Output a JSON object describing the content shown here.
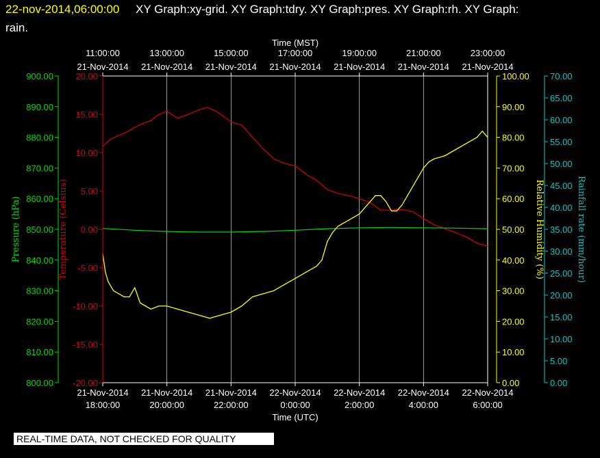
{
  "header": {
    "date": "22-nov-2014,06:00:00",
    "line1": "XY Graph:xy-grid.  XY Graph:tdry.  XY Graph:pres.  XY Graph:rh.  XY Graph:",
    "line2": "rain."
  },
  "quality_notice": "REAL-TIME DATA, NOT CHECKED FOR QUALITY",
  "colors": {
    "pressure": "#00dd00",
    "temperature": "#dd0000",
    "humidity": "#ffff00",
    "rain": "#00cccc",
    "grid": "#ffffff",
    "background": "#000000"
  },
  "chart_data": {
    "type": "line",
    "x_axis_top": {
      "label": "Time (MST)",
      "ticks": [
        {
          "time": "11:00:00",
          "date": "21-Nov-2014"
        },
        {
          "time": "13:00:00",
          "date": "21-Nov-2014"
        },
        {
          "time": "15:00:00",
          "date": "21-Nov-2014"
        },
        {
          "time": "17:00:00",
          "date": "21-Nov-2014"
        },
        {
          "time": "19:00:00",
          "date": "21-Nov-2014"
        },
        {
          "time": "21:00:00",
          "date": "21-Nov-2014"
        },
        {
          "time": "23:00:00",
          "date": "21-Nov-2014"
        }
      ]
    },
    "x_axis_bottom": {
      "label": "Time (UTC)",
      "range": [
        "2014-11-21 18:00",
        "2014-11-22 06:00"
      ],
      "ticks": [
        {
          "date": "21-Nov-2014",
          "time": "18:00:00"
        },
        {
          "date": "21-Nov-2014",
          "time": "20:00:00"
        },
        {
          "date": "21-Nov-2014",
          "time": "22:00:00"
        },
        {
          "date": "22-Nov-2014",
          "time": "0:00:00"
        },
        {
          "date": "22-Nov-2014",
          "time": "2:00:00"
        },
        {
          "date": "22-Nov-2014",
          "time": "4:00:00"
        },
        {
          "date": "22-Nov-2014",
          "time": "6:00:00"
        }
      ]
    },
    "axes": {
      "pressure": {
        "label": "Pressure (hPa)",
        "range": [
          800,
          900
        ],
        "ticks": [
          "800.00",
          "810.00",
          "820.00",
          "830.00",
          "840.00",
          "850.00",
          "860.00",
          "870.00",
          "880.00",
          "890.00",
          "900.00"
        ]
      },
      "temperature": {
        "label": "Temperature (Celsius)",
        "range": [
          -20,
          20
        ],
        "ticks": [
          "-20.00",
          "-15.00",
          "-10.00",
          "-5.00",
          "0.00",
          "5.00",
          "10.00",
          "15.00",
          "20.00"
        ]
      },
      "humidity": {
        "label": "Relative Humidity (%)",
        "range": [
          0,
          100
        ],
        "ticks": [
          "0.00",
          "10.00",
          "20.00",
          "30.00",
          "40.00",
          "50.00",
          "60.00",
          "70.00",
          "80.00",
          "90.00",
          "100.00"
        ]
      },
      "rain": {
        "label": "Rainfall rate (mm/hour)",
        "range": [
          0,
          70
        ],
        "ticks": [
          "0.00",
          "5.00",
          "10.00",
          "15.00",
          "20.00",
          "25.00",
          "30.00",
          "35.00",
          "40.00",
          "45.00",
          "50.00",
          "55.00",
          "60.00",
          "65.00",
          "70.00"
        ]
      }
    },
    "grid": true,
    "series": [
      {
        "key": "temperature",
        "x": [
          "2014-11-21 18:00",
          "2014-11-21 18:15",
          "2014-11-21 18:45",
          "2014-11-21 19:00",
          "2014-11-21 19:15",
          "2014-11-21 19:30",
          "2014-11-21 19:45",
          "2014-11-21 20:00",
          "2014-11-21 20:20",
          "2014-11-21 20:40",
          "2014-11-21 21:00",
          "2014-11-21 21:15",
          "2014-11-21 21:30",
          "2014-11-21 21:45",
          "2014-11-21 22:00",
          "2014-11-21 22:20",
          "2014-11-21 22:40",
          "2014-11-21 23:00",
          "2014-11-21 23:20",
          "2014-11-21 23:40",
          "2014-11-22 00:00",
          "2014-11-22 00:20",
          "2014-11-22 00:40",
          "2014-11-22 01:00",
          "2014-11-22 01:20",
          "2014-11-22 01:40",
          "2014-11-22 02:00",
          "2014-11-22 02:20",
          "2014-11-22 02:40",
          "2014-11-22 03:00",
          "2014-11-22 03:20",
          "2014-11-22 03:40",
          "2014-11-22 04:00",
          "2014-11-22 04:20",
          "2014-11-22 04:40",
          "2014-11-22 05:00",
          "2014-11-22 05:20",
          "2014-11-22 05:40",
          "2014-11-22 06:00"
        ],
        "y": [
          10.8,
          11.8,
          12.7,
          13.3,
          13.8,
          14.2,
          15.0,
          15.4,
          14.5,
          15.0,
          15.6,
          15.9,
          15.5,
          14.8,
          14.0,
          13.6,
          12.0,
          10.5,
          9.2,
          8.6,
          8.3,
          7.2,
          6.4,
          5.2,
          4.7,
          4.4,
          4.0,
          3.5,
          2.5,
          2.5,
          2.6,
          2.3,
          1.4,
          0.6,
          0.1,
          -0.4,
          -1.0,
          -1.8,
          -2.2
        ]
      },
      {
        "key": "pressure",
        "x": [
          "2014-11-21 18:00",
          "2014-11-21 19:00",
          "2014-11-21 20:00",
          "2014-11-21 21:00",
          "2014-11-21 22:00",
          "2014-11-21 23:00",
          "2014-11-22 00:00",
          "2014-11-22 01:00",
          "2014-11-22 02:00",
          "2014-11-22 03:00",
          "2014-11-22 04:00",
          "2014-11-22 05:00",
          "2014-11-22 06:00"
        ],
        "y": [
          850.3,
          849.7,
          849.3,
          849.1,
          849.1,
          849.3,
          849.7,
          850.2,
          850.5,
          850.6,
          850.5,
          850.4,
          850.2
        ]
      },
      {
        "key": "humidity",
        "x": [
          "2014-11-21 18:00",
          "2014-11-21 18:05",
          "2014-11-21 18:10",
          "2014-11-21 18:20",
          "2014-11-21 18:30",
          "2014-11-21 18:40",
          "2014-11-21 18:50",
          "2014-11-21 19:00",
          "2014-11-21 19:10",
          "2014-11-21 19:20",
          "2014-11-21 19:30",
          "2014-11-21 19:45",
          "2014-11-21 20:00",
          "2014-11-21 20:20",
          "2014-11-21 20:40",
          "2014-11-21 21:00",
          "2014-11-21 21:20",
          "2014-11-21 21:40",
          "2014-11-21 22:00",
          "2014-11-21 22:20",
          "2014-11-21 22:40",
          "2014-11-21 23:00",
          "2014-11-21 23:20",
          "2014-11-21 23:40",
          "2014-11-22 00:00",
          "2014-11-22 00:20",
          "2014-11-22 00:40",
          "2014-11-22 00:50",
          "2014-11-22 01:00",
          "2014-11-22 01:10",
          "2014-11-22 01:20",
          "2014-11-22 01:40",
          "2014-11-22 02:00",
          "2014-11-22 02:10",
          "2014-11-22 02:20",
          "2014-11-22 02:30",
          "2014-11-22 02:40",
          "2014-11-22 02:50",
          "2014-11-22 03:00",
          "2014-11-22 03:10",
          "2014-11-22 03:20",
          "2014-11-22 03:40",
          "2014-11-22 04:00",
          "2014-11-22 04:10",
          "2014-11-22 04:20",
          "2014-11-22 04:40",
          "2014-11-22 05:00",
          "2014-11-22 05:20",
          "2014-11-22 05:40",
          "2014-11-22 05:50",
          "2014-11-22 06:00"
        ],
        "y": [
          42,
          36,
          33,
          30,
          29,
          28,
          28,
          31,
          26,
          25,
          24,
          25,
          25,
          24,
          23,
          22,
          21,
          22,
          23,
          25,
          28,
          29,
          30,
          32,
          34,
          36,
          38,
          40,
          46,
          49,
          51,
          53,
          55,
          57,
          59,
          61,
          61,
          59,
          56,
          56,
          58,
          64,
          70,
          72,
          73,
          74,
          76,
          78,
          80,
          82,
          80
        ]
      },
      {
        "key": "rain",
        "x": [],
        "y": []
      }
    ]
  }
}
